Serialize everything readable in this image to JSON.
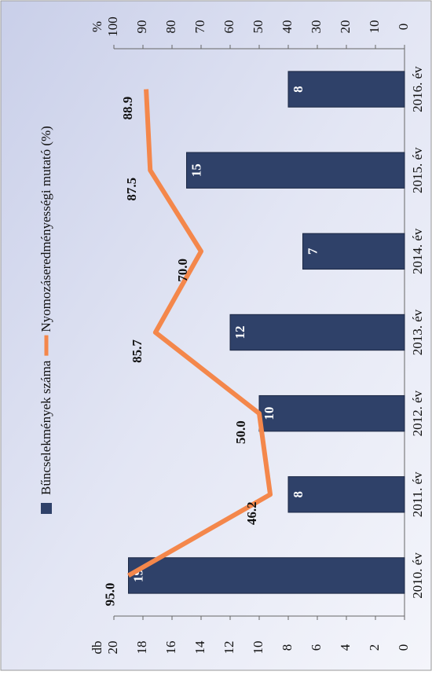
{
  "chart_data": {
    "type": "bar_line",
    "categories": [
      "2010. év",
      "2011. év",
      "2012. év",
      "2013. év",
      "2014. év",
      "2015. év",
      "2016. év"
    ],
    "y_label": "db",
    "y2_label": "%",
    "series": [
      {
        "name": "Bűncselekmények száma",
        "type": "bar",
        "color": "#2f4169",
        "values": [
          19,
          8,
          10,
          12,
          7,
          15,
          8
        ]
      },
      {
        "name": "Nyomozáseredményességi mutató (%)",
        "type": "line",
        "axis": "y2",
        "color": "#f4874b",
        "values": [
          95.0,
          46.2,
          50.0,
          85.7,
          70.0,
          87.5,
          88.9
        ],
        "value_labels": [
          "95.0",
          "46.2",
          "50.0",
          "85.7",
          "70.0",
          "87.5",
          "88.9"
        ]
      }
    ],
    "ylim": [
      0,
      20
    ],
    "yticks": [
      0,
      2,
      4,
      6,
      8,
      10,
      12,
      14,
      16,
      18,
      20
    ],
    "y2lim": [
      0,
      100
    ],
    "y2ticks": [
      0,
      10,
      20,
      30,
      40,
      50,
      60,
      70,
      80,
      90,
      100
    ],
    "grid": false,
    "legend": "top"
  }
}
